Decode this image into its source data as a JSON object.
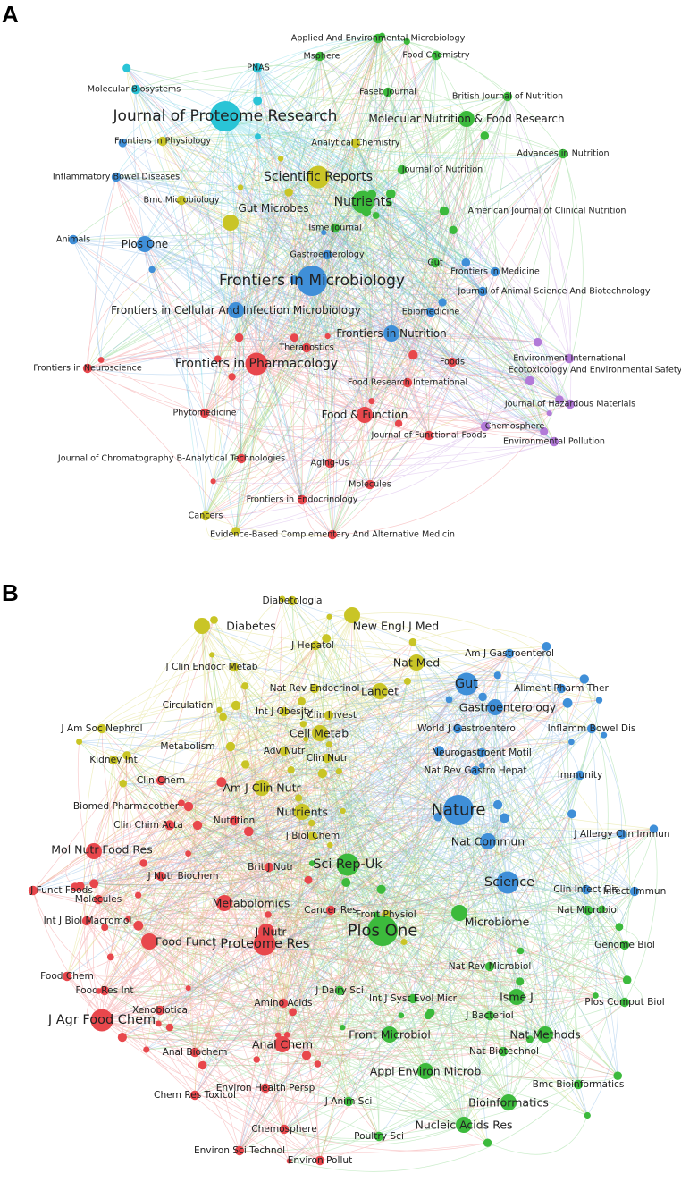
{
  "colors": {
    "red": "#e8474c",
    "green": "#3cba3c",
    "blue": "#3f8fd8",
    "yellow": "#c9c526",
    "cyan": "#2ac4d6",
    "purple": "#b27ad8"
  },
  "panels": [
    {
      "label": "A",
      "nodes": [
        {
          "name": "Applied And Environmental Microbiology",
          "c": "green",
          "w": 2
        },
        {
          "name": "Msphere",
          "c": "green",
          "w": 2
        },
        {
          "name": "Food Chemistry",
          "c": "green",
          "w": 2
        },
        {
          "name": "PNAS",
          "c": "cyan",
          "w": 2
        },
        {
          "name": "Faseb Journal",
          "c": "green",
          "w": 2
        },
        {
          "name": "British Journal of Nutrition",
          "c": "green",
          "w": 2
        },
        {
          "name": "Molecular Biosystems",
          "c": "cyan",
          "w": 2
        },
        {
          "name": "Journal of Proteome Research",
          "c": "cyan",
          "w": 5
        },
        {
          "name": "Molecular Nutrition & Food Research",
          "c": "green",
          "w": 3
        },
        {
          "name": "Frontiers in Physiology",
          "c": "yellow",
          "w": 2
        },
        {
          "name": "Analytical Chemistry",
          "c": "yellow",
          "w": 2
        },
        {
          "name": "Advances in Nutrition",
          "c": "green",
          "w": 2
        },
        {
          "name": "Journal of Nutrition",
          "c": "green",
          "w": 2
        },
        {
          "name": "Inflammatory Bowel Diseases",
          "c": "blue",
          "w": 2
        },
        {
          "name": "Scientific Reports",
          "c": "yellow",
          "w": 4
        },
        {
          "name": "Nutrients",
          "c": "green",
          "w": 4
        },
        {
          "name": "Bmc Microbiology",
          "c": "yellow",
          "w": 2
        },
        {
          "name": "Gut Microbes",
          "c": "yellow",
          "w": 3
        },
        {
          "name": "American Journal of Clinical Nutrition",
          "c": "green",
          "w": 2
        },
        {
          "name": "Isme Journal",
          "c": "green",
          "w": 2
        },
        {
          "name": "Animals",
          "c": "blue",
          "w": 2
        },
        {
          "name": "Plos One",
          "c": "blue",
          "w": 3
        },
        {
          "name": "Gastroenterology",
          "c": "blue",
          "w": 2
        },
        {
          "name": "Gut",
          "c": "green",
          "w": 2
        },
        {
          "name": "Frontiers in Medicine",
          "c": "blue",
          "w": 2
        },
        {
          "name": "Frontiers in Microbiology",
          "c": "blue",
          "w": 5
        },
        {
          "name": "Journal of Animal Science And Biotechnology",
          "c": "blue",
          "w": 2
        },
        {
          "name": "Frontiers in Cellular And Infection Microbiology",
          "c": "blue",
          "w": 3
        },
        {
          "name": "Ebiomedicine",
          "c": "blue",
          "w": 2
        },
        {
          "name": "Frontiers in Nutrition",
          "c": "blue",
          "w": 3
        },
        {
          "name": "Theranostics",
          "c": "red",
          "w": 2
        },
        {
          "name": "Frontiers in Neuroscience",
          "c": "red",
          "w": 2
        },
        {
          "name": "Frontiers in Pharmacology",
          "c": "red",
          "w": 4
        },
        {
          "name": "Foods",
          "c": "red",
          "w": 2
        },
        {
          "name": "Environment International",
          "c": "purple",
          "w": 2
        },
        {
          "name": "Ecotoxicology And Environmental Safety",
          "c": "purple",
          "w": 2
        },
        {
          "name": "Food Research International",
          "c": "red",
          "w": 2
        },
        {
          "name": "Phytomedicine",
          "c": "red",
          "w": 2
        },
        {
          "name": "Food & Function",
          "c": "red",
          "w": 3
        },
        {
          "name": "Journal of Hazardous Materials",
          "c": "purple",
          "w": 2
        },
        {
          "name": "Chemosphere",
          "c": "purple",
          "w": 2
        },
        {
          "name": "Journal of Functional Foods",
          "c": "red",
          "w": 2
        },
        {
          "name": "Environmental Pollution",
          "c": "purple",
          "w": 2
        },
        {
          "name": "Journal of Chromatography B-Analytical Technologies",
          "c": "red",
          "w": 2
        },
        {
          "name": "Aging-Us",
          "c": "red",
          "w": 2
        },
        {
          "name": "Molecules",
          "c": "red",
          "w": 2
        },
        {
          "name": "Frontiers in Endocrinology",
          "c": "red",
          "w": 2
        },
        {
          "name": "Cancers",
          "c": "yellow",
          "w": 2
        },
        {
          "name": "Evidence-Based Complementary And Alternative Medicin",
          "c": "red",
          "w": 2
        }
      ]
    },
    {
      "label": "B",
      "nodes": [
        {
          "name": "Diabetologia",
          "c": "yellow",
          "w": 2
        },
        {
          "name": "Diabetes",
          "c": "yellow",
          "w": 3
        },
        {
          "name": "New Engl J Med",
          "c": "yellow",
          "w": 3
        },
        {
          "name": "J Hepatol",
          "c": "yellow",
          "w": 2
        },
        {
          "name": "Am J Gastroenterol",
          "c": "blue",
          "w": 2
        },
        {
          "name": "J Clin Endocr Metab",
          "c": "yellow",
          "w": 2
        },
        {
          "name": "Nat Med",
          "c": "yellow",
          "w": 3
        },
        {
          "name": "Gut",
          "c": "blue",
          "w": 4
        },
        {
          "name": "Nat Rev Endocrinol",
          "c": "yellow",
          "w": 2
        },
        {
          "name": "Lancet",
          "c": "yellow",
          "w": 3
        },
        {
          "name": "Aliment Pharm Ther",
          "c": "blue",
          "w": 2
        },
        {
          "name": "Circulation",
          "c": "yellow",
          "w": 2
        },
        {
          "name": "Int J Obesity",
          "c": "yellow",
          "w": 2
        },
        {
          "name": "J Clin Invest",
          "c": "yellow",
          "w": 2
        },
        {
          "name": "Gastroenterology",
          "c": "blue",
          "w": 3
        },
        {
          "name": "J Am Soc Nephrol",
          "c": "yellow",
          "w": 2
        },
        {
          "name": "Cell Metab",
          "c": "yellow",
          "w": 3
        },
        {
          "name": "World J Gastroentero",
          "c": "blue",
          "w": 2
        },
        {
          "name": "Inflamm Bowel Dis",
          "c": "blue",
          "w": 2
        },
        {
          "name": "Metabolism",
          "c": "yellow",
          "w": 2
        },
        {
          "name": "Adv Nutr",
          "c": "yellow",
          "w": 2
        },
        {
          "name": "Neurogastroent Motil",
          "c": "blue",
          "w": 2
        },
        {
          "name": "Kidney Int",
          "c": "yellow",
          "w": 2
        },
        {
          "name": "Clin Nutr",
          "c": "yellow",
          "w": 2
        },
        {
          "name": "Nat Rev Gastro Hepat",
          "c": "blue",
          "w": 2
        },
        {
          "name": "Clin Chem",
          "c": "red",
          "w": 2
        },
        {
          "name": "Immunity",
          "c": "blue",
          "w": 2
        },
        {
          "name": "Am J Clin Nutr",
          "c": "yellow",
          "w": 3
        },
        {
          "name": "Biomed Pharmacother",
          "c": "red",
          "w": 2
        },
        {
          "name": "Nutrients",
          "c": "yellow",
          "w": 3
        },
        {
          "name": "Nature",
          "c": "blue",
          "w": 5
        },
        {
          "name": "Clin Chim Acta",
          "c": "red",
          "w": 2
        },
        {
          "name": "Nutrition",
          "c": "red",
          "w": 2
        },
        {
          "name": "J Biol Chem",
          "c": "yellow",
          "w": 2
        },
        {
          "name": "Nat Commun",
          "c": "blue",
          "w": 3
        },
        {
          "name": "J Allergy Clin Immun",
          "c": "blue",
          "w": 2
        },
        {
          "name": "Mol Nutr Food Res",
          "c": "red",
          "w": 3
        },
        {
          "name": "Sci Rep-Uk",
          "c": "green",
          "w": 4
        },
        {
          "name": "J Nutr Biochem",
          "c": "red",
          "w": 2
        },
        {
          "name": "Brit J Nutr",
          "c": "red",
          "w": 2
        },
        {
          "name": "J Funct Foods",
          "c": "red",
          "w": 2
        },
        {
          "name": "Molecules",
          "c": "red",
          "w": 2
        },
        {
          "name": "Science",
          "c": "blue",
          "w": 4
        },
        {
          "name": "Clin Infect Dis",
          "c": "blue",
          "w": 2
        },
        {
          "name": "Metabolomics",
          "c": "red",
          "w": 3
        },
        {
          "name": "Front Physiol",
          "c": "yellow",
          "w": 2
        },
        {
          "name": "Infect Immun",
          "c": "blue",
          "w": 2
        },
        {
          "name": "Int J Biol Macromol",
          "c": "red",
          "w": 2
        },
        {
          "name": "Cancer Res",
          "c": "red",
          "w": 2
        },
        {
          "name": "Nat Microbiol",
          "c": "green",
          "w": 2
        },
        {
          "name": "Microbiome",
          "c": "green",
          "w": 3
        },
        {
          "name": "Plos One",
          "c": "green",
          "w": 5
        },
        {
          "name": "J Nutr",
          "c": "red",
          "w": 3
        },
        {
          "name": "Food Funct",
          "c": "red",
          "w": 3
        },
        {
          "name": "Genome Biol",
          "c": "green",
          "w": 2
        },
        {
          "name": "J Proteome Res",
          "c": "red",
          "w": 4
        },
        {
          "name": "Nat Rev Microbiol",
          "c": "green",
          "w": 2
        },
        {
          "name": "Food Chem",
          "c": "red",
          "w": 2
        },
        {
          "name": "Food Res Int",
          "c": "red",
          "w": 2
        },
        {
          "name": "Int J Syst Evol Micr",
          "c": "green",
          "w": 2
        },
        {
          "name": "Isme J",
          "c": "green",
          "w": 3
        },
        {
          "name": "Plos Comput Biol",
          "c": "green",
          "w": 2
        },
        {
          "name": "J Dairy Sci",
          "c": "green",
          "w": 2
        },
        {
          "name": "Amino Acids",
          "c": "red",
          "w": 2
        },
        {
          "name": "J Bacteriol",
          "c": "green",
          "w": 2
        },
        {
          "name": "Xenobiotica",
          "c": "red",
          "w": 2
        },
        {
          "name": "J Agr Food Chem",
          "c": "red",
          "w": 4
        },
        {
          "name": "Front Microbiol",
          "c": "green",
          "w": 3
        },
        {
          "name": "Nat Methods",
          "c": "green",
          "w": 3
        },
        {
          "name": "Anal Chem",
          "c": "red",
          "w": 3
        },
        {
          "name": "Nat Biotechnol",
          "c": "green",
          "w": 2
        },
        {
          "name": "Anal Biochem",
          "c": "red",
          "w": 2
        },
        {
          "name": "Appl Environ Microb",
          "c": "green",
          "w": 3
        },
        {
          "name": "Bmc Bioinformatics",
          "c": "green",
          "w": 2
        },
        {
          "name": "Chem Res Toxicol",
          "c": "red",
          "w": 2
        },
        {
          "name": "Environ Health Persp",
          "c": "red",
          "w": 2
        },
        {
          "name": "J Anim Sci",
          "c": "green",
          "w": 2
        },
        {
          "name": "Bioinformatics",
          "c": "green",
          "w": 3
        },
        {
          "name": "Nucleic Acids Res",
          "c": "green",
          "w": 3
        },
        {
          "name": "Chemosphere",
          "c": "red",
          "w": 2
        },
        {
          "name": "Poultry Sci",
          "c": "green",
          "w": 2
        },
        {
          "name": "Environ Sci Technol",
          "c": "red",
          "w": 2
        },
        {
          "name": "Environ Pollut",
          "c": "red",
          "w": 2
        }
      ]
    }
  ]
}
